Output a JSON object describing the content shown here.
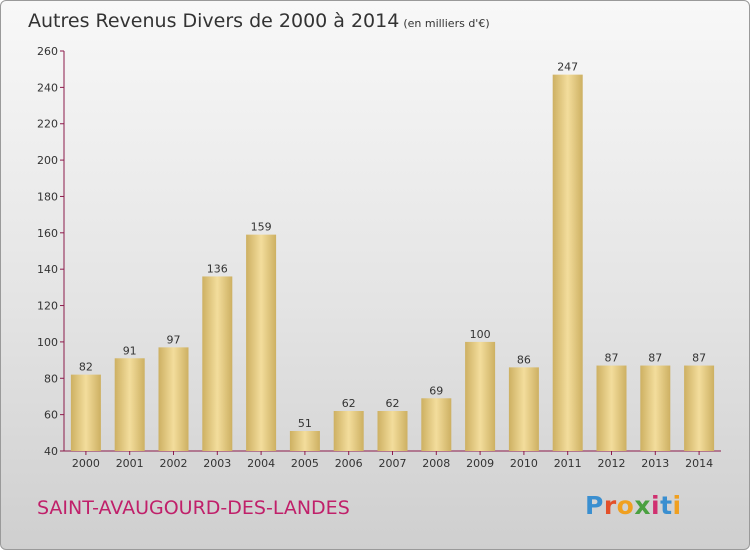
{
  "header": {
    "title": "Autres Revenus Divers de 2000 à 2014",
    "subtitle": "(en milliers d'€)"
  },
  "footer": {
    "commune": "SAINT-AVAUGOURD-DES-LANDES",
    "logo_text": "Proxiti"
  },
  "colors": {
    "bar_light": "#f3dd9c",
    "bar_dark": "#cdb062",
    "axis": "#8b1a4a",
    "commune_text": "#c0206a",
    "logo_letters": [
      "#3a8fd0",
      "#e3502a",
      "#f0a020",
      "#4aa040",
      "#d03070",
      "#3a8fd0",
      "#f0a020"
    ]
  },
  "chart_data": {
    "type": "bar",
    "title": "Autres Revenus Divers de 2000 à 2014",
    "subtitle": "(en milliers d'€)",
    "categories": [
      "2000",
      "2001",
      "2002",
      "2003",
      "2004",
      "2005",
      "2006",
      "2007",
      "2008",
      "2009",
      "2010",
      "2011",
      "2012",
      "2013",
      "2014"
    ],
    "values": [
      82,
      91,
      97,
      136,
      159,
      51,
      62,
      62,
      69,
      100,
      86,
      247,
      87,
      87,
      87
    ],
    "ylim": [
      40,
      260
    ],
    "yticks": [
      40,
      60,
      80,
      100,
      120,
      140,
      160,
      180,
      200,
      220,
      240,
      260
    ],
    "grid": false,
    "legend": "none",
    "data_labels": true
  }
}
